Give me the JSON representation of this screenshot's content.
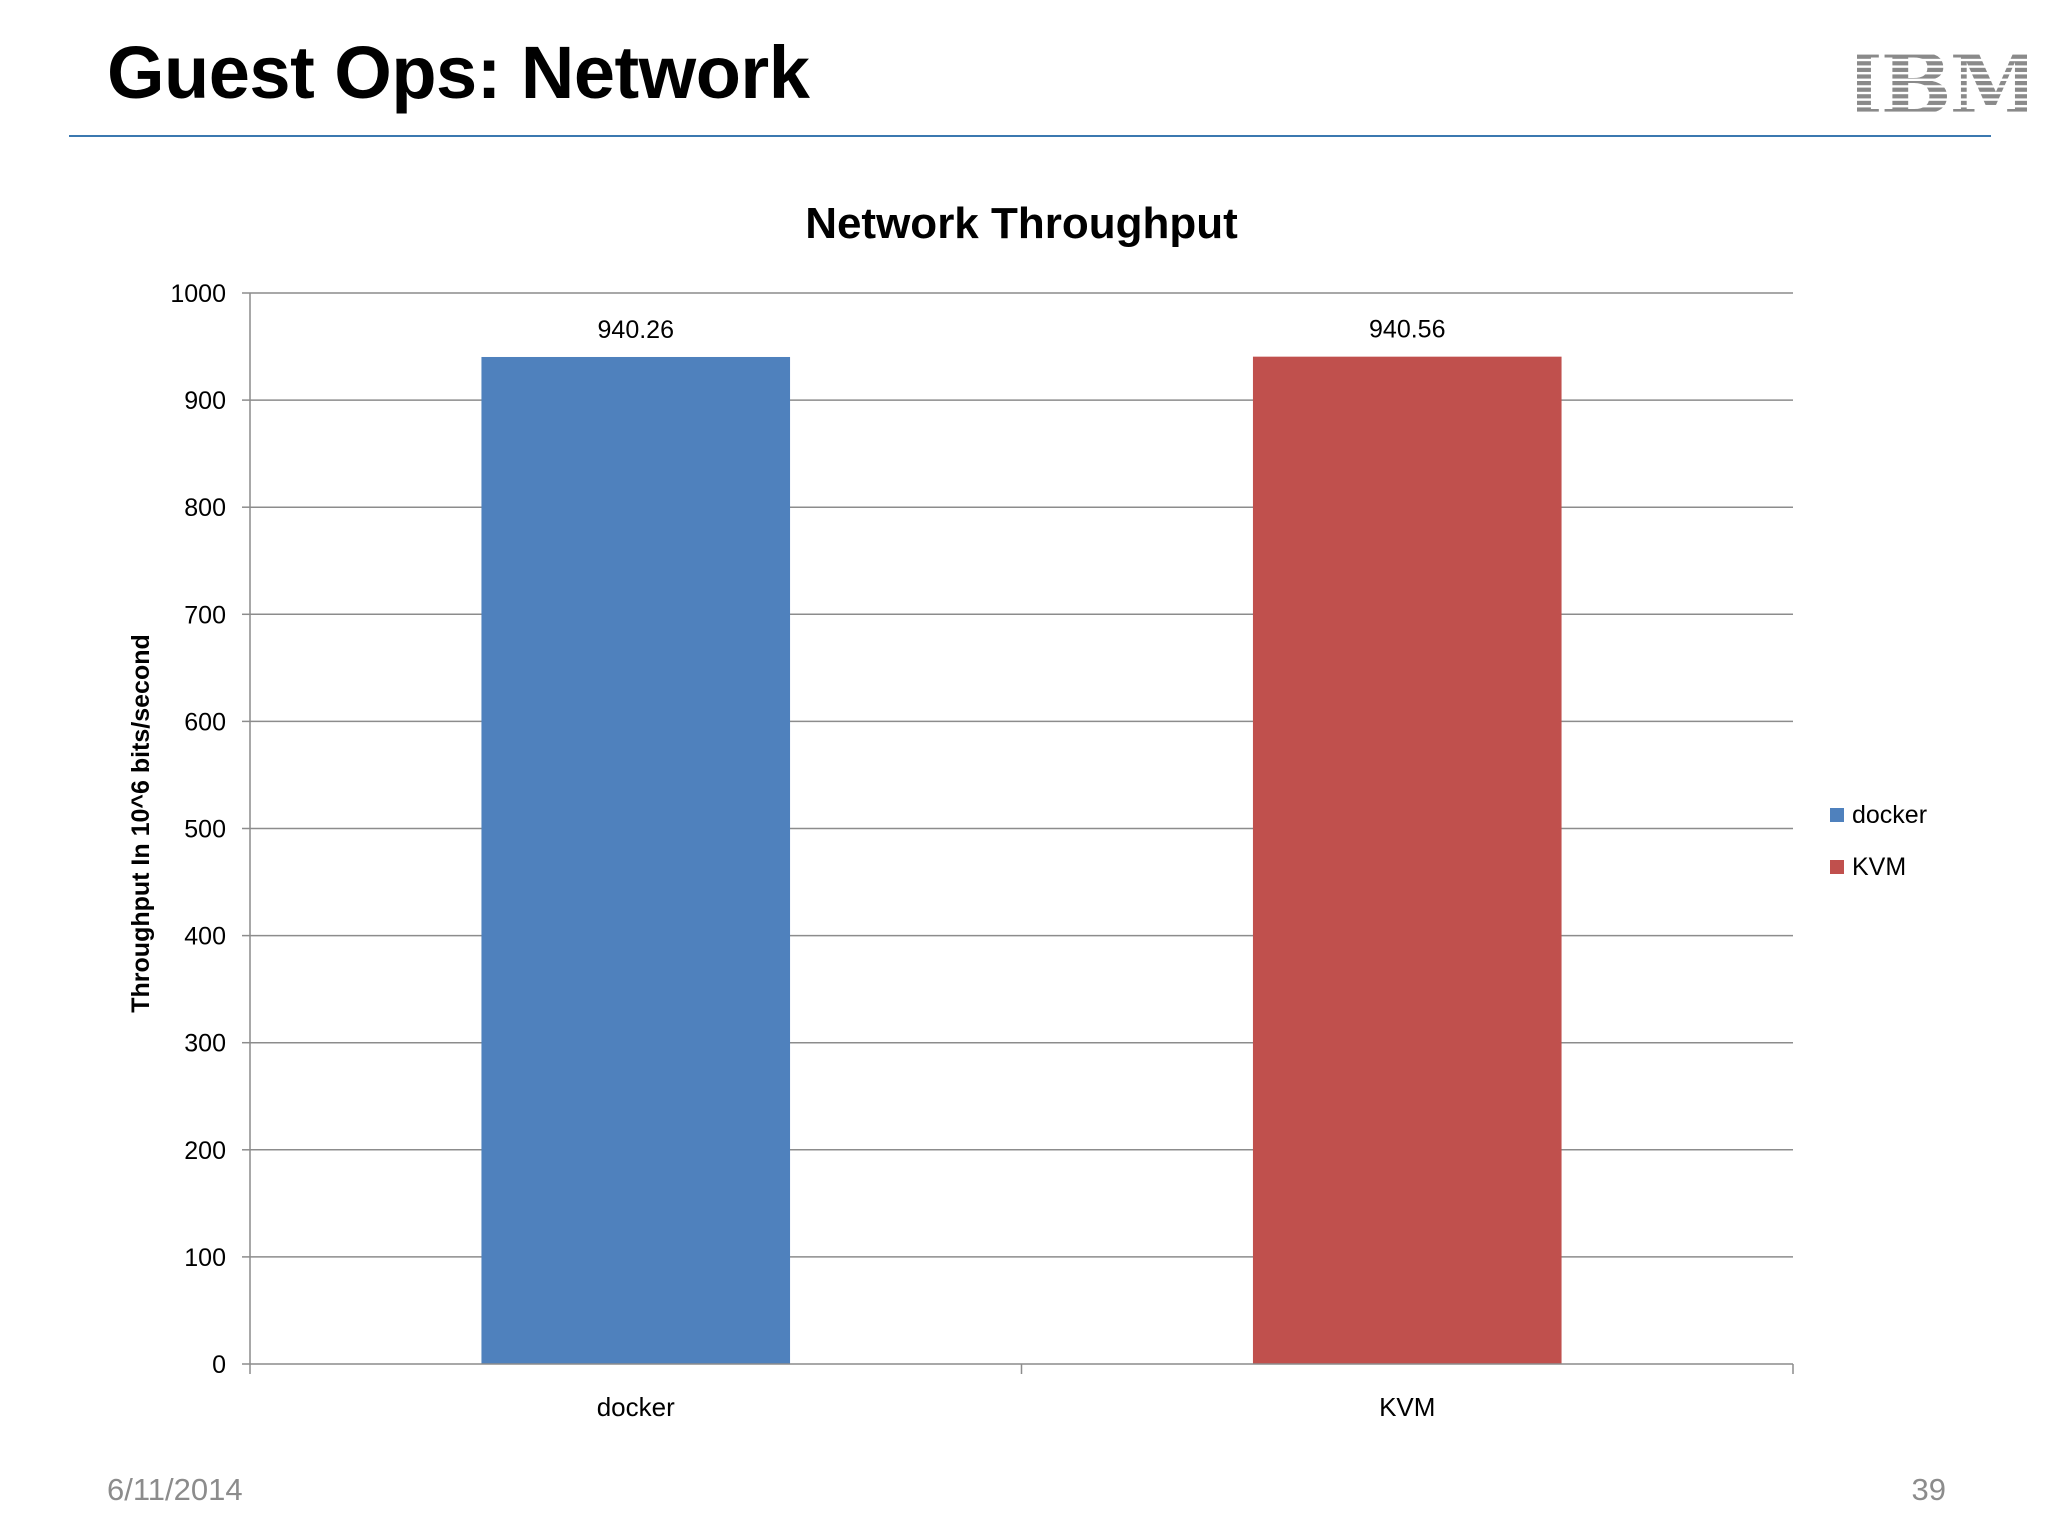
{
  "slide": {
    "title": "Guest Ops: Network",
    "date": "6/11/2014",
    "page_number": "39",
    "logo_text": "IBM",
    "rule_color": "#3b78b0"
  },
  "chart_data": {
    "type": "bar",
    "title": "Network Throughput",
    "xlabel": "",
    "ylabel": "Throughput In 10^6 bits/second",
    "categories": [
      "docker",
      "KVM"
    ],
    "series": [
      {
        "name": "docker",
        "color": "#4f81bd",
        "values": [
          940.26,
          null
        ]
      },
      {
        "name": "KVM",
        "color": "#c0504d",
        "values": [
          null,
          940.56
        ]
      }
    ],
    "data_labels": [
      "940.26",
      "940.56"
    ],
    "ylim": [
      0,
      1000
    ],
    "yticks": [
      "0",
      "100",
      "200",
      "300",
      "400",
      "500",
      "600",
      "700",
      "800",
      "900",
      "1000"
    ],
    "grid": true,
    "legend_position": "right"
  }
}
